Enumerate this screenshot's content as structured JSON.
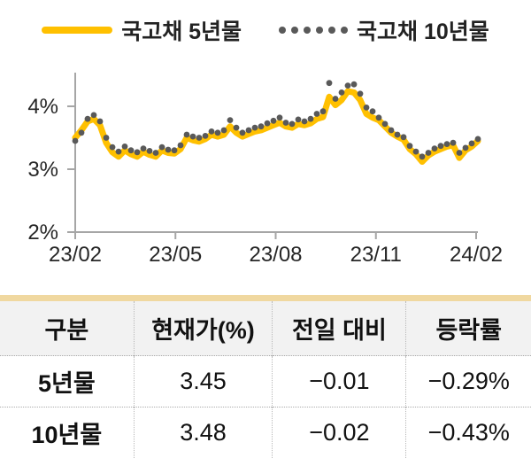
{
  "legend": {
    "series1_label": "국고채 5년물",
    "series2_label": "국고채 10년물"
  },
  "chart_data": {
    "type": "line",
    "title": "",
    "xlabel": "",
    "ylabel": "",
    "x_tick_labels": [
      "23/02",
      "23/05",
      "23/08",
      "23/11",
      "24/02"
    ],
    "y_ticks": [
      2,
      3,
      4
    ],
    "y_tick_labels": [
      "2%",
      "3%",
      "4%"
    ],
    "ylim": [
      2,
      4.6
    ],
    "grid": false,
    "legend_position": "top-center",
    "axis_color": "#a6a6a6",
    "series": [
      {
        "name": "국고채 5년물",
        "style": "solid",
        "color": "#ffc000",
        "values": [
          3.5,
          3.62,
          3.76,
          3.8,
          3.7,
          3.42,
          3.27,
          3.2,
          3.3,
          3.24,
          3.2,
          3.28,
          3.23,
          3.2,
          3.3,
          3.26,
          3.25,
          3.32,
          3.5,
          3.46,
          3.44,
          3.48,
          3.55,
          3.52,
          3.55,
          3.68,
          3.58,
          3.52,
          3.56,
          3.6,
          3.62,
          3.66,
          3.7,
          3.74,
          3.68,
          3.66,
          3.72,
          3.7,
          3.73,
          3.8,
          3.83,
          4.15,
          4.02,
          4.1,
          4.24,
          4.22,
          4.1,
          3.88,
          3.82,
          3.78,
          3.68,
          3.58,
          3.52,
          3.47,
          3.32,
          3.24,
          3.12,
          3.22,
          3.28,
          3.32,
          3.36,
          3.38,
          3.18,
          3.3,
          3.36,
          3.45
        ]
      },
      {
        "name": "국고채 10년물",
        "style": "dotted",
        "color": "#595959",
        "values": [
          3.45,
          3.58,
          3.8,
          3.86,
          3.76,
          3.5,
          3.35,
          3.28,
          3.36,
          3.3,
          3.27,
          3.33,
          3.29,
          3.26,
          3.35,
          3.31,
          3.3,
          3.38,
          3.55,
          3.52,
          3.5,
          3.53,
          3.6,
          3.58,
          3.62,
          3.78,
          3.66,
          3.58,
          3.62,
          3.66,
          3.68,
          3.73,
          3.77,
          3.82,
          3.74,
          3.72,
          3.79,
          3.76,
          3.8,
          3.88,
          3.92,
          4.37,
          4.12,
          4.22,
          4.33,
          4.35,
          4.2,
          3.98,
          3.92,
          3.82,
          3.72,
          3.62,
          3.55,
          3.51,
          3.37,
          3.28,
          3.2,
          3.26,
          3.33,
          3.37,
          3.4,
          3.42,
          3.26,
          3.34,
          3.41,
          3.48
        ]
      }
    ]
  },
  "table": {
    "headers": [
      "구분",
      "현재가(%)",
      "전일 대비",
      "등락률"
    ],
    "rows": [
      [
        "5년물",
        "3.45",
        "−0.01",
        "−0.29%"
      ],
      [
        "10년물",
        "3.48",
        "−0.02",
        "−0.43%"
      ]
    ]
  },
  "colors": {
    "series_5y": "#ffc000",
    "series_10y": "#595959",
    "table_top_bar": "#f0d8a0",
    "header_bg": "#f2f2f2",
    "axis": "#a6a6a6"
  }
}
